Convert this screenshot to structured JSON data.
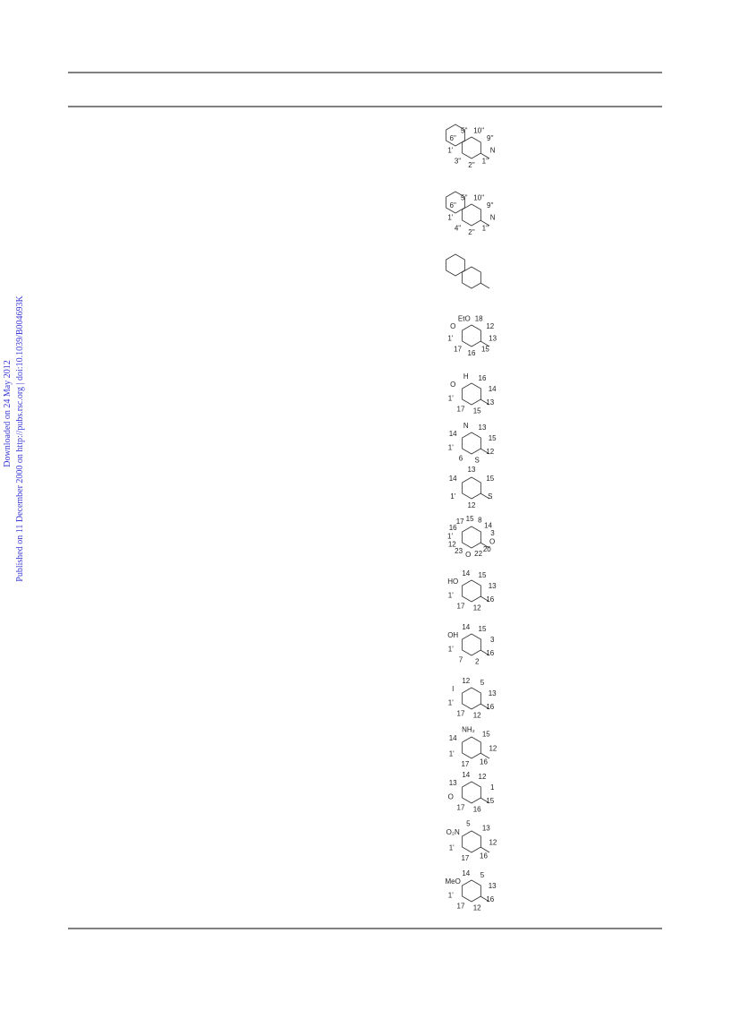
{
  "sidebar": {
    "line1": "Downloaded on 24 May 2012",
    "line2": "Published on 11 December 2000 on http://pubs.rsc.org | doi:10.1039/B004693K"
  },
  "structures": [
    {
      "labels": [
        "6''",
        "5''",
        "10''",
        "9''",
        "N",
        "1''",
        "2''",
        "3''",
        "1'"
      ]
    },
    {
      "labels": [
        "6''",
        "5''",
        "10''",
        "9''",
        "N",
        "1''",
        "2''",
        "4''",
        "1'"
      ]
    },
    {
      "labels": []
    },
    {
      "labels": [
        "O",
        "EtO",
        "18",
        "12",
        "13",
        "15",
        "16",
        "17",
        "1'"
      ]
    },
    {
      "labels": [
        "O",
        "H",
        "16",
        "14",
        "13",
        "15",
        "17",
        "1'"
      ]
    },
    {
      "labels": [
        "14",
        "N",
        "13",
        "15",
        "12",
        "S",
        "6",
        "1'"
      ]
    },
    {
      "labels": [
        "14",
        "13",
        "15",
        "S",
        "12",
        "1'"
      ]
    },
    {
      "labels": [
        "16",
        "17",
        "15",
        "8",
        "14",
        "3",
        "O",
        "20",
        "22",
        "O",
        "23",
        "12",
        "1'"
      ]
    },
    {
      "labels": [
        "HO",
        "14",
        "15",
        "13",
        "16",
        "12",
        "17",
        "1'"
      ]
    },
    {
      "labels": [
        "OH",
        "14",
        "15",
        "3",
        "16",
        "2",
        "7",
        "1'"
      ]
    },
    {
      "labels": [
        "I",
        "12",
        "5",
        "13",
        "16",
        "12",
        "17",
        "1'"
      ]
    },
    {
      "labels": [
        "14",
        "NH₂",
        "15",
        "12",
        "16",
        "17",
        "1'"
      ]
    },
    {
      "labels": [
        "13",
        "14",
        "12",
        "1",
        "15",
        "16",
        "17",
        "O"
      ]
    },
    {
      "labels": [
        "O₂N",
        "5",
        "13",
        "12",
        "16",
        "17",
        "1'"
      ]
    },
    {
      "labels": [
        "MeO",
        "14",
        "5",
        "13",
        "16",
        "12",
        "17",
        "1'"
      ]
    }
  ]
}
